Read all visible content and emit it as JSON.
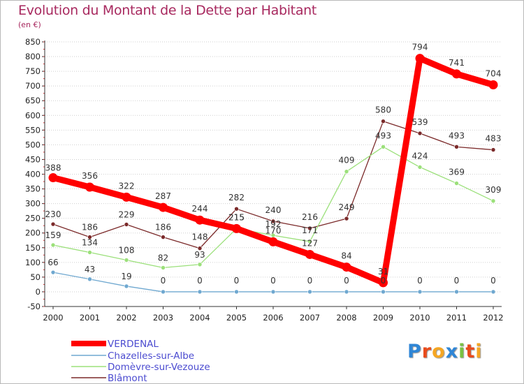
{
  "chart_data": {
    "type": "line",
    "title": "Evolution du Montant de la Dette par Habitant",
    "subtitle": "(en €)",
    "x": [
      "2000",
      "2001",
      "2002",
      "2003",
      "2004",
      "2005",
      "2006",
      "2007",
      "2008",
      "2009",
      "2010",
      "2011",
      "2012"
    ],
    "y_ticks": [
      850,
      800,
      750,
      700,
      650,
      600,
      550,
      500,
      450,
      400,
      350,
      300,
      250,
      200,
      150,
      100,
      50,
      0,
      -50
    ],
    "ylim": [
      -50,
      850
    ],
    "grid": "horizontal dotted",
    "legend_position": "bottom-left",
    "series": [
      {
        "name": "VERDENAL",
        "color": "#ff0000",
        "values": [
          388,
          356,
          322,
          287,
          244,
          215,
          170,
          127,
          84,
          31,
          794,
          741,
          704
        ]
      },
      {
        "name": "Chazelles-sur-Albe",
        "color": "#6fa8d0",
        "values": [
          66,
          43,
          19,
          0,
          0,
          0,
          0,
          0,
          0,
          0,
          0,
          0,
          0
        ]
      },
      {
        "name": "Domèvre-sur-Vezouze",
        "color": "#9be07a",
        "values": [
          159,
          134,
          108,
          82,
          93,
          215,
          192,
          171,
          409,
          493,
          424,
          369,
          309
        ]
      },
      {
        "name": "Blâmont",
        "color": "#7b2a2a",
        "values": [
          230,
          186,
          229,
          186,
          148,
          282,
          240,
          216,
          249,
          580,
          539,
          493,
          483
        ]
      }
    ]
  },
  "brand": {
    "letters": [
      "P",
      "r",
      "o",
      "x",
      "i",
      "t",
      "i"
    ],
    "colors": [
      "#2f86d6",
      "#e94b1c",
      "#f5a623",
      "#2f86d6",
      "#7ac143",
      "#e94b1c",
      "#f5a623"
    ]
  }
}
